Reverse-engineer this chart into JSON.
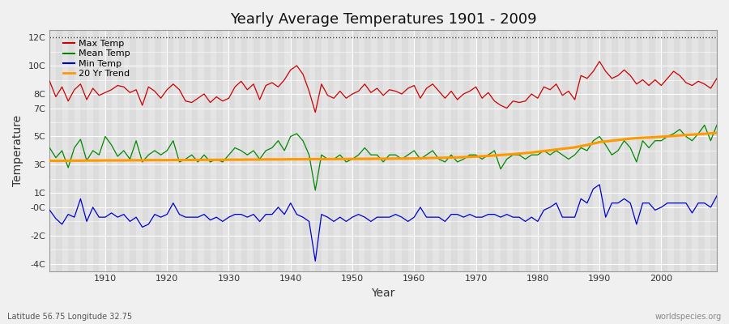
{
  "title": "Yearly Average Temperatures 1901 - 2009",
  "xlabel": "Year",
  "ylabel": "Temperature",
  "subtitle_left": "Latitude 56.75 Longitude 32.75",
  "subtitle_right": "worldspecies.org",
  "background_color": "#f0f0f0",
  "plot_bg_color": "#dcdcdc",
  "colors": {
    "max": "#cc0000",
    "mean": "#008800",
    "min": "#0000cc",
    "trend": "#ff9900"
  },
  "years": [
    1901,
    1902,
    1903,
    1904,
    1905,
    1906,
    1907,
    1908,
    1909,
    1910,
    1911,
    1912,
    1913,
    1914,
    1915,
    1916,
    1917,
    1918,
    1919,
    1920,
    1921,
    1922,
    1923,
    1924,
    1925,
    1926,
    1927,
    1928,
    1929,
    1930,
    1931,
    1932,
    1933,
    1934,
    1935,
    1936,
    1937,
    1938,
    1939,
    1940,
    1941,
    1942,
    1943,
    1944,
    1945,
    1946,
    1947,
    1948,
    1949,
    1950,
    1951,
    1952,
    1953,
    1954,
    1955,
    1956,
    1957,
    1958,
    1959,
    1960,
    1961,
    1962,
    1963,
    1964,
    1965,
    1966,
    1967,
    1968,
    1969,
    1970,
    1971,
    1972,
    1973,
    1974,
    1975,
    1976,
    1977,
    1978,
    1979,
    1980,
    1981,
    1982,
    1983,
    1984,
    1985,
    1986,
    1987,
    1988,
    1989,
    1990,
    1991,
    1992,
    1993,
    1994,
    1995,
    1996,
    1997,
    1998,
    1999,
    2000,
    2001,
    2002,
    2003,
    2004,
    2005,
    2006,
    2007,
    2008,
    2009
  ],
  "max_temp": [
    8.9,
    7.8,
    8.5,
    7.5,
    8.3,
    8.7,
    7.6,
    8.4,
    7.9,
    8.1,
    8.3,
    8.6,
    8.5,
    8.1,
    8.3,
    7.2,
    8.5,
    8.2,
    7.7,
    8.3,
    8.7,
    8.3,
    7.5,
    7.4,
    7.7,
    8.0,
    7.4,
    7.8,
    7.5,
    7.7,
    8.5,
    8.9,
    8.3,
    8.7,
    7.6,
    8.6,
    8.8,
    8.5,
    9.0,
    9.7,
    10.0,
    9.4,
    8.2,
    6.7,
    8.7,
    7.9,
    7.7,
    8.2,
    7.7,
    8.0,
    8.2,
    8.7,
    8.1,
    8.4,
    7.9,
    8.3,
    8.2,
    8.0,
    8.4,
    8.6,
    7.7,
    8.4,
    8.7,
    8.2,
    7.7,
    8.2,
    7.6,
    8.0,
    8.2,
    8.5,
    7.7,
    8.1,
    7.5,
    7.2,
    7.0,
    7.5,
    7.4,
    7.5,
    8.0,
    7.7,
    8.5,
    8.3,
    8.7,
    7.9,
    8.2,
    7.6,
    9.3,
    9.1,
    9.6,
    10.3,
    9.6,
    9.1,
    9.3,
    9.7,
    9.3,
    8.7,
    9.0,
    8.6,
    9.0,
    8.6,
    9.1,
    9.6,
    9.3,
    8.8,
    8.6,
    8.9,
    8.7,
    8.4,
    9.1
  ],
  "mean_temp": [
    4.2,
    3.5,
    4.0,
    2.8,
    4.2,
    4.8,
    3.3,
    4.0,
    3.7,
    5.0,
    4.4,
    3.6,
    4.0,
    3.4,
    4.7,
    3.2,
    3.7,
    4.0,
    3.7,
    4.0,
    4.7,
    3.2,
    3.4,
    3.7,
    3.2,
    3.7,
    3.2,
    3.4,
    3.2,
    3.7,
    4.2,
    4.0,
    3.7,
    4.0,
    3.4,
    4.0,
    4.2,
    4.7,
    4.0,
    5.0,
    5.2,
    4.7,
    3.7,
    1.2,
    3.7,
    3.4,
    3.4,
    3.7,
    3.2,
    3.4,
    3.7,
    4.2,
    3.7,
    3.7,
    3.2,
    3.7,
    3.7,
    3.4,
    3.7,
    4.0,
    3.4,
    3.7,
    4.0,
    3.4,
    3.2,
    3.7,
    3.2,
    3.4,
    3.7,
    3.7,
    3.4,
    3.7,
    4.0,
    2.7,
    3.4,
    3.7,
    3.7,
    3.4,
    3.7,
    3.7,
    4.0,
    3.7,
    4.0,
    3.7,
    3.4,
    3.7,
    4.2,
    4.0,
    4.7,
    5.0,
    4.4,
    3.7,
    4.0,
    4.7,
    4.2,
    3.2,
    4.7,
    4.2,
    4.7,
    4.7,
    5.0,
    5.2,
    5.5,
    5.0,
    4.7,
    5.2,
    5.8,
    4.7,
    5.8
  ],
  "min_temp": [
    -0.2,
    -0.8,
    -1.2,
    -0.5,
    -0.7,
    0.6,
    -1.0,
    0.0,
    -0.7,
    -0.7,
    -0.4,
    -0.7,
    -0.5,
    -1.0,
    -0.7,
    -1.4,
    -1.2,
    -0.5,
    -0.7,
    -0.5,
    0.3,
    -0.5,
    -0.7,
    -0.7,
    -0.7,
    -0.5,
    -0.9,
    -0.7,
    -1.0,
    -0.7,
    -0.5,
    -0.5,
    -0.7,
    -0.5,
    -1.0,
    -0.5,
    -0.5,
    0.0,
    -0.5,
    0.3,
    -0.5,
    -0.7,
    -1.0,
    -3.8,
    -0.5,
    -0.7,
    -1.0,
    -0.7,
    -1.0,
    -0.7,
    -0.5,
    -0.7,
    -1.0,
    -0.7,
    -0.7,
    -0.7,
    -0.5,
    -0.7,
    -1.0,
    -0.7,
    0.0,
    -0.7,
    -0.7,
    -0.7,
    -1.0,
    -0.5,
    -0.5,
    -0.7,
    -0.5,
    -0.7,
    -0.7,
    -0.5,
    -0.5,
    -0.7,
    -0.5,
    -0.7,
    -0.7,
    -1.0,
    -0.7,
    -1.0,
    -0.2,
    0.0,
    0.3,
    -0.7,
    -0.7,
    -0.7,
    0.6,
    0.3,
    1.3,
    1.6,
    -0.7,
    0.3,
    0.3,
    0.6,
    0.3,
    -1.2,
    0.3,
    0.3,
    -0.2,
    0.0,
    0.3,
    0.3,
    0.3,
    0.3,
    -0.4,
    0.3,
    0.3,
    0.0,
    0.8
  ],
  "trend": [
    3.28,
    3.28,
    3.28,
    3.29,
    3.29,
    3.29,
    3.3,
    3.3,
    3.3,
    3.31,
    3.31,
    3.31,
    3.31,
    3.32,
    3.32,
    3.32,
    3.33,
    3.33,
    3.33,
    3.33,
    3.34,
    3.34,
    3.34,
    3.34,
    3.35,
    3.35,
    3.35,
    3.35,
    3.35,
    3.36,
    3.36,
    3.36,
    3.37,
    3.37,
    3.37,
    3.38,
    3.38,
    3.38,
    3.38,
    3.39,
    3.39,
    3.39,
    3.4,
    3.4,
    3.4,
    3.4,
    3.4,
    3.41,
    3.41,
    3.41,
    3.42,
    3.42,
    3.42,
    3.43,
    3.43,
    3.43,
    3.44,
    3.44,
    3.44,
    3.45,
    3.46,
    3.47,
    3.48,
    3.49,
    3.5,
    3.51,
    3.52,
    3.54,
    3.56,
    3.58,
    3.6,
    3.63,
    3.66,
    3.69,
    3.72,
    3.75,
    3.79,
    3.83,
    3.87,
    3.92,
    3.97,
    4.02,
    4.08,
    4.13,
    4.18,
    4.23,
    4.32,
    4.4,
    4.5,
    4.6,
    4.65,
    4.7,
    4.75,
    4.8,
    4.85,
    4.88,
    4.91,
    4.93,
    4.95,
    4.98,
    5.01,
    5.04,
    5.07,
    5.1,
    5.13,
    5.16,
    5.19,
    5.22,
    5.25
  ],
  "ytick_positions": [
    -4,
    -2,
    0,
    1,
    3,
    5,
    7,
    8,
    10,
    12
  ],
  "ytick_labels": [
    "-4C",
    "-2C",
    "-0C",
    "1C",
    "3C",
    "5C",
    "7C",
    "8C",
    "10C",
    "12C"
  ],
  "xtick_positions": [
    1910,
    1920,
    1930,
    1940,
    1950,
    1960,
    1970,
    1980,
    1990,
    2000
  ],
  "xlim": [
    1901,
    2009
  ],
  "ylim": [
    -4.5,
    12.5
  ]
}
